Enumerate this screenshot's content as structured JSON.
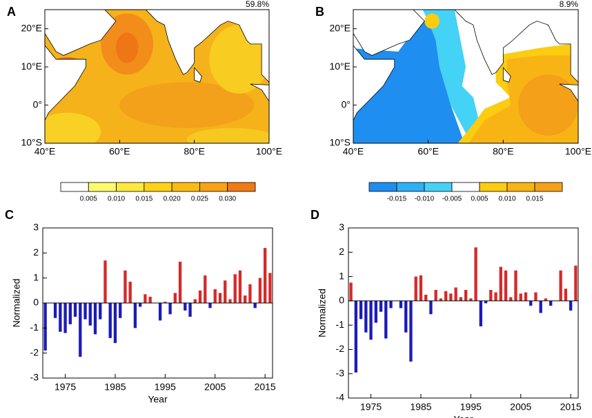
{
  "chart_data": [
    {
      "type": "map",
      "panel": "A",
      "annotation": "59.8%",
      "xlim": [
        40,
        100
      ],
      "ylim": [
        -10,
        25
      ],
      "xticks": [
        {
          "value": 40,
          "label": "40°E"
        },
        {
          "value": 60,
          "label": "60°E"
        },
        {
          "value": 80,
          "label": "80°E"
        },
        {
          "value": 100,
          "label": "100°E"
        }
      ],
      "yticks": [
        {
          "value": 20,
          "label": "20°E"
        },
        {
          "value": 10,
          "label": "10°E"
        },
        {
          "value": 0,
          "label": "0°"
        },
        {
          "value": -10,
          "label": "10°S"
        }
      ],
      "colorbar": {
        "colors": [
          "#ffffff",
          "#fbfb6e",
          "#fde83e",
          "#fdd214",
          "#fbbb12",
          "#f8a214",
          "#f27a14"
        ],
        "ticks": [
          0.005,
          {
            "value": 0.01,
            "label": "0.010"
          },
          0.015,
          {
            "value": 0.02,
            "label": "0.020"
          },
          0.025,
          {
            "value": 0.03,
            "label": "0.030"
          }
        ]
      }
    },
    {
      "type": "map",
      "panel": "B",
      "annotation": "8.9%",
      "xlim": [
        40,
        100
      ],
      "ylim": [
        -10,
        25
      ],
      "xticks": [
        {
          "value": 40,
          "label": "40°E"
        },
        {
          "value": 60,
          "label": "60°E"
        },
        {
          "value": 80,
          "label": "80°E"
        },
        {
          "value": 100,
          "label": "100°E"
        }
      ],
      "yticks": [
        {
          "value": 20,
          "label": "20°E"
        },
        {
          "value": 10,
          "label": "10°E"
        },
        {
          "value": 0,
          "label": "0°"
        },
        {
          "value": -10,
          "label": "10°S"
        }
      ],
      "colorbar": {
        "colors": [
          "#1e8ef0",
          "#2eb0f6",
          "#44d2f6",
          "#ffffff",
          "#fbcc10",
          "#f8b414",
          "#f4a018"
        ],
        "ticks": [
          -0.015,
          {
            "value": -0.01,
            "label": "-0.010"
          },
          -0.005,
          0.005,
          {
            "value": 0.01,
            "label": "0.010"
          },
          0.015
        ]
      }
    },
    {
      "type": "bar",
      "panel": "C",
      "x_label": "Year",
      "y_label": "Normalized",
      "positive_color": "#d42a2a",
      "negative_color": "#1c1cb8",
      "xlim": [
        1970.5,
        2016.5
      ],
      "xticks": [
        1975,
        1985,
        1995,
        2005,
        2015
      ],
      "ylim": [
        -3,
        3
      ],
      "yticks": [
        -3,
        -2,
        -1,
        0,
        1,
        2,
        3
      ],
      "x": [
        1971,
        1972,
        1973,
        1974,
        1975,
        1976,
        1977,
        1978,
        1979,
        1980,
        1981,
        1982,
        1983,
        1984,
        1985,
        1986,
        1987,
        1988,
        1989,
        1990,
        1991,
        1992,
        1993,
        1994,
        1995,
        1996,
        1997,
        1998,
        1999,
        2000,
        2001,
        2002,
        2003,
        2004,
        2005,
        2006,
        2007,
        2008,
        2009,
        2010,
        2011,
        2012,
        2013,
        2014,
        2015,
        2016
      ],
      "values": [
        -1.9,
        0,
        -0.6,
        -1.15,
        -1.2,
        -0.85,
        -0.55,
        -2.15,
        -0.65,
        -0.9,
        -1.25,
        -0.65,
        1.7,
        -1.4,
        -1.6,
        -0.6,
        1.3,
        0.85,
        -1.0,
        -0.15,
        0.35,
        0.25,
        0,
        -0.7,
        0.05,
        -0.45,
        0.4,
        1.65,
        -0.3,
        -0.55,
        0.15,
        0.5,
        1.1,
        -0.2,
        0.55,
        0.4,
        0.9,
        0.15,
        1.15,
        1.3,
        0.3,
        0.75,
        -0.2,
        1.0,
        2.2,
        1.2
      ]
    },
    {
      "type": "bar",
      "panel": "D",
      "x_label": "Year",
      "y_label": "Normalized",
      "positive_color": "#d42a2a",
      "negative_color": "#1c1cb8",
      "xlim": [
        1970.5,
        2016.5
      ],
      "xticks": [
        1975,
        1985,
        1995,
        2005,
        2015
      ],
      "ylim": [
        -4,
        3
      ],
      "yticks": [
        -4,
        -3,
        -2,
        -1,
        0,
        1,
        2,
        3
      ],
      "x": [
        1971,
        1972,
        1973,
        1974,
        1975,
        1976,
        1977,
        1978,
        1979,
        1980,
        1981,
        1982,
        1983,
        1984,
        1985,
        1986,
        1987,
        1988,
        1989,
        1990,
        1991,
        1992,
        1993,
        1994,
        1995,
        1996,
        1997,
        1998,
        1999,
        2000,
        2001,
        2002,
        2003,
        2004,
        2005,
        2006,
        2007,
        2008,
        2009,
        2010,
        2011,
        2012,
        2013,
        2014,
        2015,
        2016
      ],
      "values": [
        0.75,
        -2.95,
        -0.75,
        -1.3,
        -1.6,
        -0.9,
        -0.45,
        -1.55,
        -0.3,
        0,
        -0.3,
        -1.3,
        -2.5,
        1.0,
        1.05,
        0.25,
        -0.55,
        0.45,
        0.1,
        0.4,
        0.3,
        0.55,
        0.15,
        0.45,
        0.1,
        2.2,
        -1.05,
        -0.1,
        0.45,
        0.35,
        1.4,
        1.25,
        0.15,
        1.25,
        0.3,
        0.35,
        -0.2,
        0.35,
        -0.5,
        0.1,
        -0.2,
        0,
        1.25,
        0.5,
        -0.4,
        1.45
      ]
    }
  ]
}
